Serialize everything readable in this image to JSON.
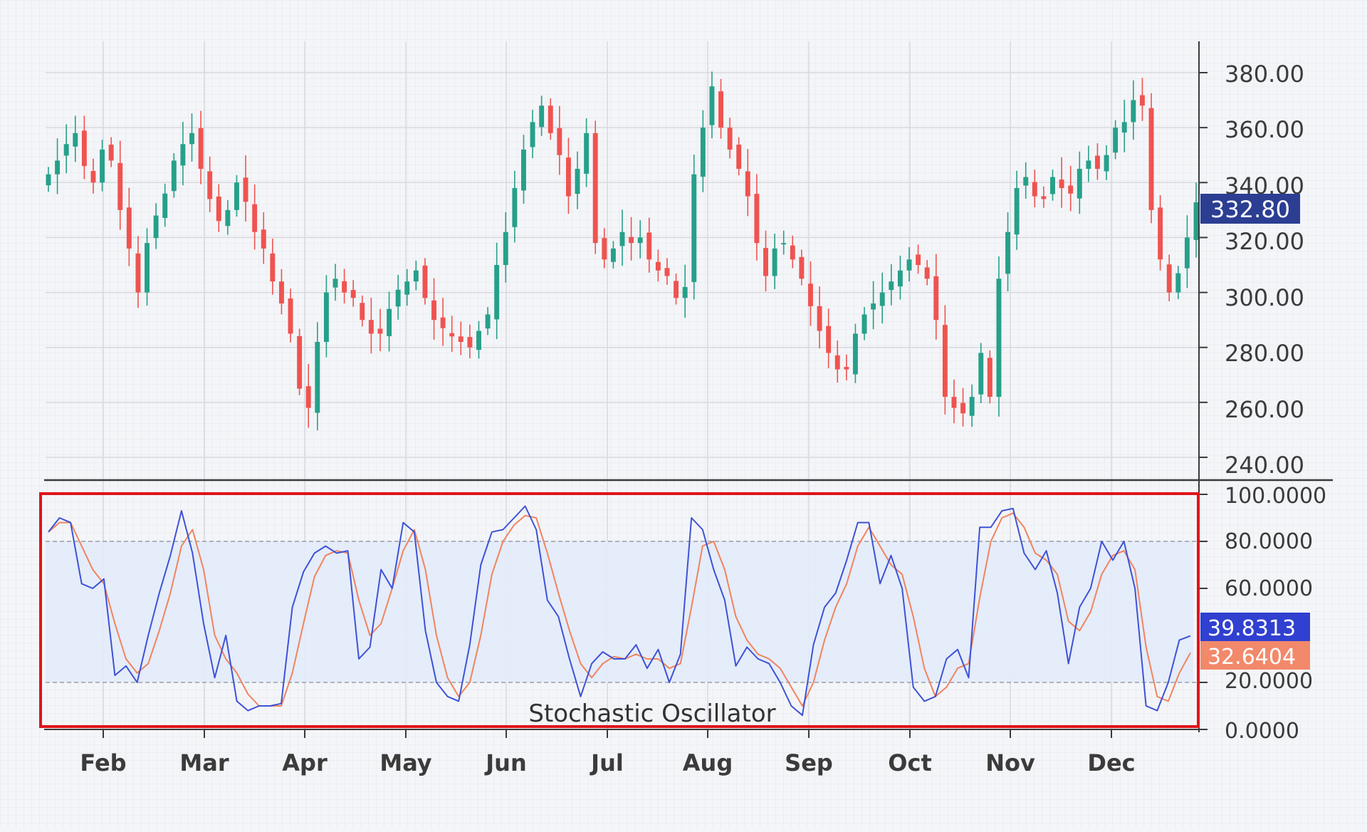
{
  "colors": {
    "up": "#26a08a",
    "down": "#ef5350",
    "k_line": "#3d52d5",
    "d_line": "#f0845e",
    "price_badge": "#2b3e92",
    "k_badge": "#3040d0",
    "d_badge": "#f2896b",
    "highlight_box": "#e0141b",
    "band_fill": "#e3ebfa",
    "grid": "#d7d9df"
  },
  "price_axis": {
    "ticks": [
      "380.00",
      "360.00",
      "340.00",
      "320.00",
      "300.00",
      "280.00",
      "260.00",
      "240.00"
    ],
    "last_price_label": "332.80"
  },
  "oscillator_axis": {
    "ticks": [
      "100.0000",
      "80.0000",
      "60.0000",
      "20.0000",
      "0.0000"
    ],
    "k_label": "39.8313",
    "d_label": "32.6404"
  },
  "months": [
    "Feb",
    "Mar",
    "Apr",
    "May",
    "Jun",
    "Jul",
    "Aug",
    "Sep",
    "Oct",
    "Nov",
    "Dec"
  ],
  "indicator_title": "Stochastic Oscillator",
  "chart_data": [
    {
      "type": "candlestick",
      "price_range": [
        235,
        390
      ],
      "x_axis": "months",
      "months": [
        "Feb",
        "Mar",
        "Apr",
        "May",
        "Jun",
        "Jul",
        "Aug",
        "Sep",
        "Oct",
        "Nov",
        "Dec"
      ],
      "last_price": 332.8,
      "closes": [
        343,
        348,
        354,
        358,
        346,
        340,
        352,
        348,
        330,
        316,
        300,
        318,
        328,
        336,
        348,
        354,
        358,
        345,
        334,
        326,
        330,
        340,
        333,
        322,
        316,
        304,
        296,
        285,
        265,
        258,
        282,
        300,
        305,
        300,
        298,
        290,
        285,
        285,
        294,
        301,
        304,
        308,
        298,
        290,
        287,
        284,
        282,
        280,
        286,
        292,
        310,
        322,
        338,
        352,
        362,
        368,
        358,
        350,
        335,
        345,
        358,
        318,
        312,
        316,
        322,
        318,
        320,
        312,
        308,
        306,
        298,
        302,
        343,
        360,
        375,
        360,
        352,
        345,
        335,
        318,
        306,
        316,
        318,
        312,
        305,
        295,
        286,
        278,
        272,
        272,
        285,
        292,
        296,
        300,
        304,
        308,
        312,
        310,
        305,
        290,
        262,
        258,
        256,
        262,
        278,
        262,
        305,
        322,
        338,
        342,
        335,
        334,
        342,
        338,
        336,
        345,
        348,
        345,
        350,
        360,
        362,
        370,
        368,
        330,
        312,
        300,
        307,
        320,
        332.8
      ],
      "k_percent": [
        84,
        90,
        88,
        62,
        60,
        64,
        23,
        27,
        20,
        40,
        58,
        74,
        93,
        75,
        45,
        22,
        40,
        12,
        8,
        10,
        10,
        11,
        52,
        67,
        75,
        78,
        75,
        76,
        30,
        35,
        68,
        60,
        88,
        84,
        42,
        20,
        14,
        12,
        36,
        70,
        84,
        85,
        90,
        95,
        85,
        55,
        48,
        30,
        14,
        28,
        33,
        30,
        30,
        36,
        26,
        34,
        20,
        32,
        90,
        85,
        68,
        55,
        27,
        35,
        30,
        28,
        20,
        10,
        6,
        36,
        52,
        58,
        72,
        88,
        88,
        62,
        74,
        60,
        18,
        12,
        14,
        30,
        34,
        22,
        86,
        86,
        93,
        94,
        75,
        68,
        76,
        58,
        28,
        52,
        60,
        80,
        72,
        80,
        60,
        10,
        8,
        20,
        38,
        39.8
      ],
      "d_percent": [
        84,
        88,
        88,
        78,
        68,
        62,
        45,
        30,
        24,
        28,
        42,
        58,
        78,
        85,
        68,
        40,
        30,
        24,
        15,
        10,
        10,
        10,
        24,
        45,
        65,
        74,
        76,
        75,
        55,
        40,
        45,
        60,
        76,
        85,
        68,
        40,
        22,
        14,
        20,
        40,
        66,
        80,
        87,
        91,
        90,
        75,
        58,
        42,
        28,
        22,
        28,
        31,
        30,
        32,
        30,
        30,
        26,
        28,
        52,
        78,
        80,
        68,
        48,
        38,
        32,
        30,
        26,
        18,
        10,
        20,
        38,
        52,
        62,
        78,
        86,
        78,
        70,
        66,
        48,
        26,
        14,
        18,
        26,
        28,
        56,
        80,
        90,
        92,
        86,
        75,
        72,
        66,
        46,
        42,
        50,
        66,
        74,
        76,
        68,
        35,
        14,
        12,
        24,
        32.6
      ],
      "reference_levels": [
        20,
        80
      ],
      "oscillator_range": [
        0,
        100
      ],
      "series": [
        {
          "name": "39.8313"
        },
        {
          "name": "32.6404"
        }
      ]
    }
  ]
}
